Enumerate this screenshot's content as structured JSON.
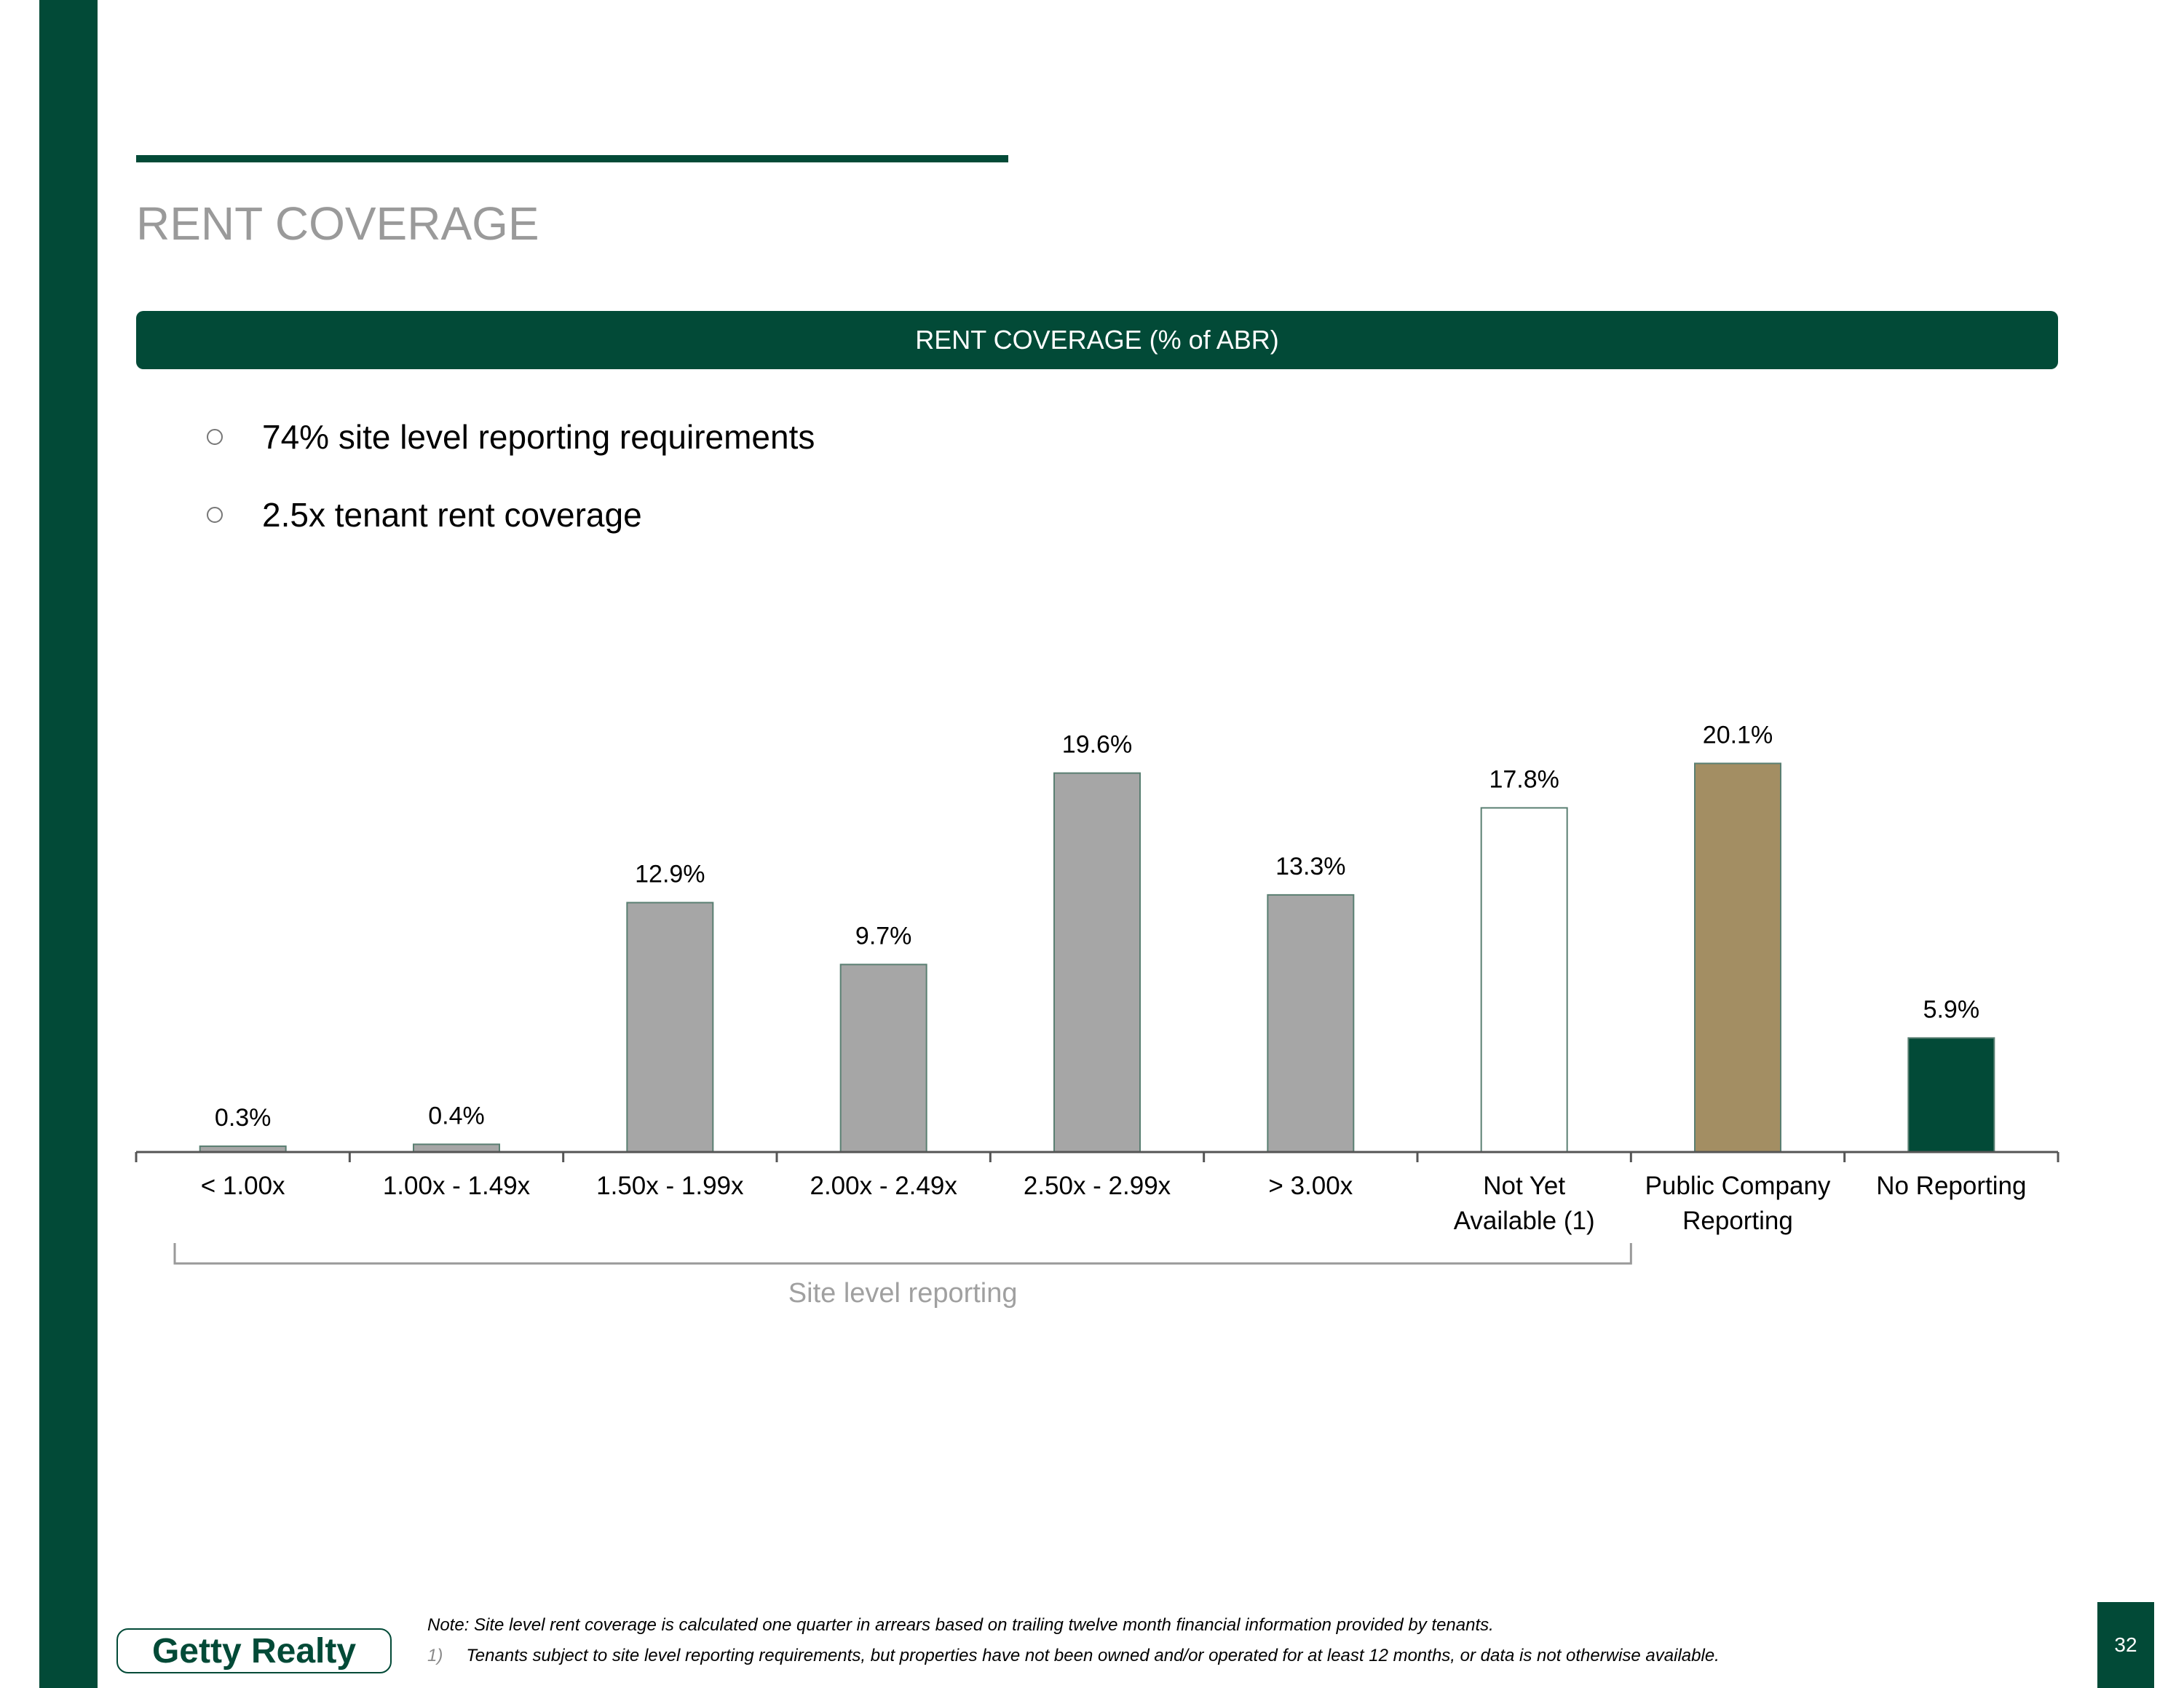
{
  "page": {
    "title": "RENT COVERAGE",
    "banner": "RENT COVERAGE (% of ABR)",
    "bullets": [
      "74% site level reporting requirements",
      "2.5x tenant rent coverage"
    ],
    "note": "Note: Site level rent coverage is calculated one quarter in arrears based on trailing twelve month financial information provided by tenants.",
    "footnote_number": "1)",
    "footnote_text": "Tenants subject to site level reporting requirements, but properties have not been owned and/or operated for at least 12 months, or data is not otherwise available.",
    "logo_text": "Getty Realty",
    "page_number": "32"
  },
  "colors": {
    "brand_green": "#024a37",
    "bar_gray": "#a6a6a6",
    "bar_outline": "#5a7f72",
    "bar_gold": "#a38e63",
    "bar_white": "#ffffff"
  },
  "chart_data": {
    "type": "bar",
    "title": "RENT COVERAGE (% of ABR)",
    "xlabel": "",
    "ylabel": "",
    "ylim": [
      0,
      21
    ],
    "categories": [
      [
        "< 1.00x"
      ],
      [
        "1.00x - 1.49x"
      ],
      [
        "1.50x - 1.99x"
      ],
      [
        "2.00x - 2.49x"
      ],
      [
        "2.50x - 2.99x"
      ],
      [
        "> 3.00x"
      ],
      [
        "Not Yet",
        "Available (1)"
      ],
      [
        "Public Company",
        "Reporting"
      ],
      [
        "No Reporting"
      ]
    ],
    "values": [
      0.3,
      0.4,
      12.9,
      9.7,
      19.6,
      13.3,
      17.8,
      20.1,
      5.9
    ],
    "value_labels": [
      "0.3%",
      "0.4%",
      "12.9%",
      "9.7%",
      "19.6%",
      "13.3%",
      "17.8%",
      "20.1%",
      "5.9%"
    ],
    "bar_colors": [
      "#a6a6a6",
      "#a6a6a6",
      "#a6a6a6",
      "#a6a6a6",
      "#a6a6a6",
      "#a6a6a6",
      "#ffffff",
      "#a38e63",
      "#024a37"
    ],
    "grid": false,
    "legend": "none",
    "annotation": "Site level reporting",
    "annotation_span": [
      "< 1.00x",
      "Not Yet Available (1)"
    ]
  }
}
